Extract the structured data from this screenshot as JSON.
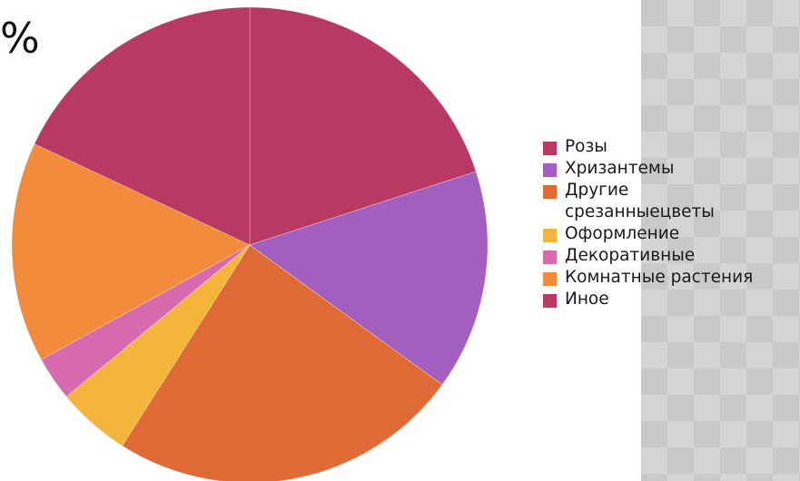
{
  "title_fragment": "%",
  "chart_data": {
    "type": "pie",
    "title": "",
    "slices": [
      {
        "label": "Розы",
        "value": 20,
        "color": "#b83a64"
      },
      {
        "label": "Хризантемы",
        "value": 15,
        "color": "#a35fbf"
      },
      {
        "label": "Другие срезанныецветы",
        "value": 24,
        "color": "#e06a35"
      },
      {
        "label": "Оформление",
        "value": 5,
        "color": "#f5b53c"
      },
      {
        "label": "Декоративные",
        "value": 3,
        "color": "#d76aaf"
      },
      {
        "label": "Комнатные растения",
        "value": 15,
        "color": "#f28c3c"
      },
      {
        "label": "Иное",
        "value": 18,
        "color": "#b83a64"
      }
    ],
    "legend_position": "right"
  },
  "legend": {
    "items": [
      {
        "label": "Розы",
        "color": "#b83a64"
      },
      {
        "label": "Хризантемы",
        "color": "#a35fbf"
      },
      {
        "label": "Другие срезанныецветы",
        "color": "#e06a35"
      },
      {
        "label": "Оформление",
        "color": "#f5b53c"
      },
      {
        "label": "Декоративные",
        "color": "#d76aaf"
      },
      {
        "label": "Комнатные растения",
        "color": "#f28c3c"
      },
      {
        "label": "Иное",
        "color": "#b83a64"
      }
    ]
  }
}
